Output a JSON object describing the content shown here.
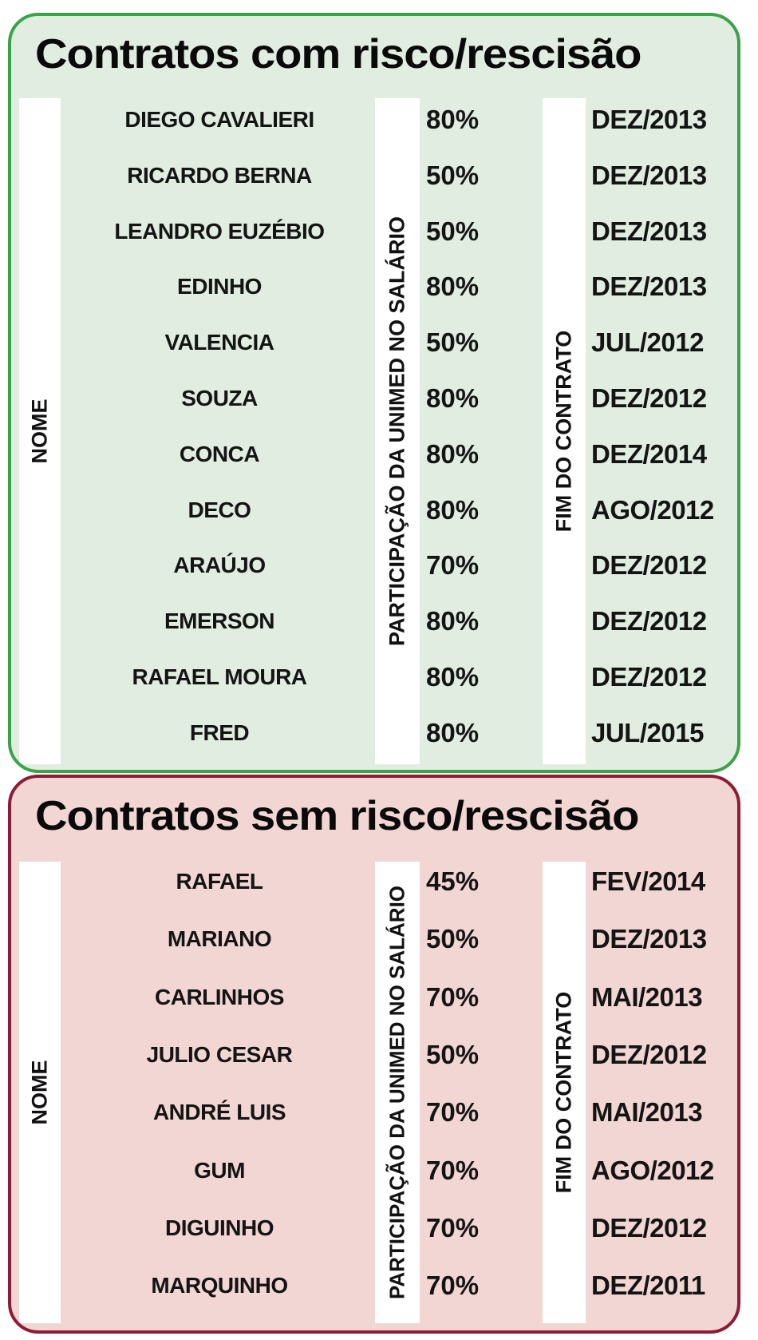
{
  "colors": {
    "panel1_border": "#3aa34a",
    "panel1_bg": "#e1ede1",
    "panel2_border": "#8e1b34",
    "panel2_bg": "#f1d6d3",
    "text": "#111111",
    "bar": "#ffffff"
  },
  "chart_data": [
    {
      "type": "table",
      "title": "Contratos com risco/rescisão",
      "columns": [
        "NOME",
        "PARTICIPAÇÃO DA UNIMED NO SALÁRIO",
        "FIM DO CONTRATO"
      ],
      "rows": [
        {
          "name": "DIEGO CAVALIERI",
          "share": "80%",
          "end": "DEZ/2013"
        },
        {
          "name": "RICARDO BERNA",
          "share": "50%",
          "end": "DEZ/2013"
        },
        {
          "name": "LEANDRO EUZÉBIO",
          "share": "50%",
          "end": "DEZ/2013"
        },
        {
          "name": "EDINHO",
          "share": "80%",
          "end": "DEZ/2013"
        },
        {
          "name": "VALENCIA",
          "share": "50%",
          "end": "JUL/2012"
        },
        {
          "name": "SOUZA",
          "share": "80%",
          "end": "DEZ/2012"
        },
        {
          "name": "CONCA",
          "share": "80%",
          "end": "DEZ/2014"
        },
        {
          "name": "DECO",
          "share": "80%",
          "end": "AGO/2012"
        },
        {
          "name": "ARAÚJO",
          "share": "70%",
          "end": "DEZ/2012"
        },
        {
          "name": "EMERSON",
          "share": "80%",
          "end": "DEZ/2012"
        },
        {
          "name": "RAFAEL MOURA",
          "share": "80%",
          "end": "DEZ/2012"
        },
        {
          "name": "FRED",
          "share": "80%",
          "end": "JUL/2015"
        }
      ]
    },
    {
      "type": "table",
      "title": "Contratos sem risco/rescisão",
      "columns": [
        "NOME",
        "PARTICIPAÇÃO DA UNIMED NO SALÁRIO",
        "FIM DO CONTRATO"
      ],
      "rows": [
        {
          "name": "RAFAEL",
          "share": "45%",
          "end": "FEV/2014"
        },
        {
          "name": "MARIANO",
          "share": "50%",
          "end": "DEZ/2013"
        },
        {
          "name": "CARLINHOS",
          "share": "70%",
          "end": "MAI/2013"
        },
        {
          "name": "JULIO CESAR",
          "share": "50%",
          "end": "DEZ/2012"
        },
        {
          "name": "ANDRÉ LUIS",
          "share": "70%",
          "end": "MAI/2013"
        },
        {
          "name": "GUM",
          "share": "70%",
          "end": "AGO/2012"
        },
        {
          "name": "DIGUINHO",
          "share": "70%",
          "end": "DEZ/2012"
        },
        {
          "name": "MARQUINHO",
          "share": "70%",
          "end": "DEZ/2011"
        }
      ]
    }
  ]
}
